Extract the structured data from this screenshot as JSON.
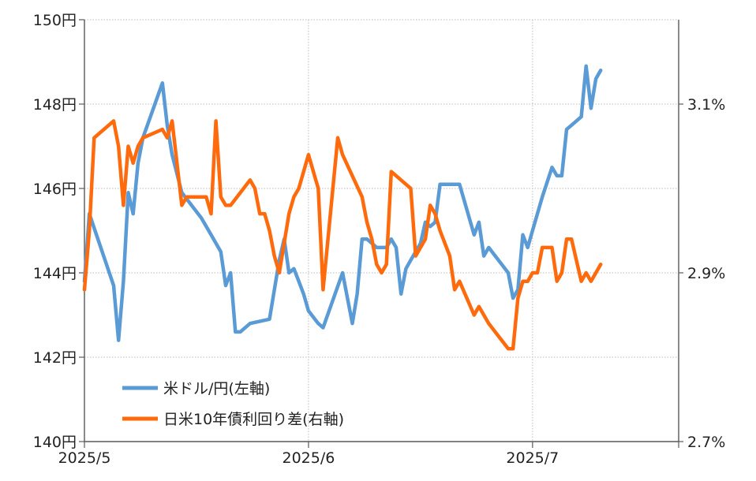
{
  "chart_data": {
    "type": "line",
    "title": "",
    "xlabel": "",
    "ylabel": "",
    "grid": true,
    "legend_position": "bottom-left",
    "x_ticks": [
      "2025/5",
      "2025/6",
      "2025/7"
    ],
    "x_range": [
      0,
      122
    ],
    "y_left": {
      "range": [
        140,
        150
      ],
      "ticks": [
        140,
        142,
        144,
        146,
        148,
        150
      ],
      "tick_labels": [
        "140円",
        "142円",
        "144円",
        "146円",
        "148円",
        "150円"
      ]
    },
    "y_right": {
      "range": [
        2.7,
        3.2
      ],
      "ticks": [
        2.7,
        2.9,
        3.1
      ],
      "tick_labels": [
        "2.7%",
        "2.9%",
        "3.1%"
      ]
    },
    "series": [
      {
        "name": "米ドル/円(左軸)",
        "axis": "left",
        "color": "#5b9bd5",
        "x": [
          0,
          1,
          6,
          7,
          8,
          9,
          10,
          11,
          12,
          16,
          17,
          18,
          20,
          24,
          26,
          28,
          29,
          30,
          31,
          32,
          33,
          34,
          38,
          40,
          41,
          42,
          43,
          44,
          45,
          46,
          48,
          49,
          53,
          55,
          56,
          57,
          58,
          59,
          60,
          61,
          62,
          63,
          64,
          65,
          66,
          67,
          68,
          69,
          70,
          71,
          72,
          73,
          75,
          76,
          77,
          80,
          81,
          82,
          83,
          87,
          88,
          89,
          90,
          91,
          92,
          93,
          94,
          96,
          97,
          98,
          99,
          100,
          101,
          102,
          103,
          104,
          105,
          106
        ],
        "values": [
          143.8,
          145.4,
          143.7,
          142.4,
          143.8,
          145.9,
          145.4,
          146.6,
          147.2,
          148.5,
          147.5,
          146.8,
          145.9,
          145.3,
          144.9,
          144.5,
          143.7,
          144.0,
          142.6,
          142.6,
          142.7,
          142.8,
          142.9,
          144.3,
          144.8,
          144.0,
          144.1,
          143.8,
          143.5,
          143.1,
          142.8,
          142.7,
          144.0,
          142.8,
          143.5,
          144.8,
          144.8,
          144.7,
          144.6,
          144.6,
          144.6,
          144.8,
          144.6,
          143.5,
          144.1,
          144.3,
          144.5,
          144.7,
          145.2,
          145.1,
          145.2,
          146.1,
          146.1,
          146.1,
          146.1,
          144.9,
          145.2,
          144.4,
          144.6,
          144.0,
          143.4,
          143.6,
          144.9,
          144.6,
          145.0,
          145.4,
          145.8,
          146.5,
          146.3,
          146.3,
          147.4,
          147.5,
          147.6,
          147.7,
          148.9,
          147.9,
          148.6,
          148.8
        ]
      },
      {
        "name": "日米10年債利回り差(右軸)",
        "axis": "right",
        "color": "#ff6a0d",
        "x": [
          0,
          1,
          2,
          6,
          7,
          8,
          9,
          10,
          11,
          12,
          16,
          17,
          18,
          20,
          21,
          25,
          26,
          27,
          28,
          29,
          30,
          34,
          35,
          36,
          37,
          38,
          39,
          40,
          42,
          43,
          44,
          46,
          47,
          48,
          49,
          50,
          51,
          52,
          53,
          57,
          58,
          59,
          60,
          61,
          62,
          63,
          67,
          68,
          70,
          71,
          72,
          73,
          75,
          76,
          77,
          80,
          81,
          82,
          83,
          87,
          88,
          89,
          90,
          91,
          92,
          93,
          94,
          96,
          97,
          98,
          99,
          100,
          102,
          103,
          104,
          105,
          106
        ],
        "values": [
          2.88,
          2.95,
          3.06,
          3.08,
          3.05,
          2.98,
          3.05,
          3.03,
          3.05,
          3.06,
          3.07,
          3.06,
          3.08,
          2.98,
          2.99,
          2.99,
          2.97,
          3.08,
          2.99,
          2.98,
          2.98,
          3.01,
          3.0,
          2.97,
          2.97,
          2.95,
          2.92,
          2.9,
          2.97,
          2.99,
          3.0,
          3.04,
          3.02,
          3.0,
          2.88,
          2.94,
          3.0,
          3.06,
          3.04,
          2.99,
          2.96,
          2.94,
          2.91,
          2.9,
          2.91,
          3.02,
          3.0,
          2.92,
          2.94,
          2.98,
          2.97,
          2.95,
          2.92,
          2.88,
          2.89,
          2.85,
          2.86,
          2.85,
          2.84,
          2.81,
          2.81,
          2.87,
          2.89,
          2.89,
          2.9,
          2.9,
          2.93,
          2.93,
          2.89,
          2.9,
          2.94,
          2.94,
          2.89,
          2.9,
          2.89,
          2.9,
          2.91
        ]
      }
    ]
  }
}
